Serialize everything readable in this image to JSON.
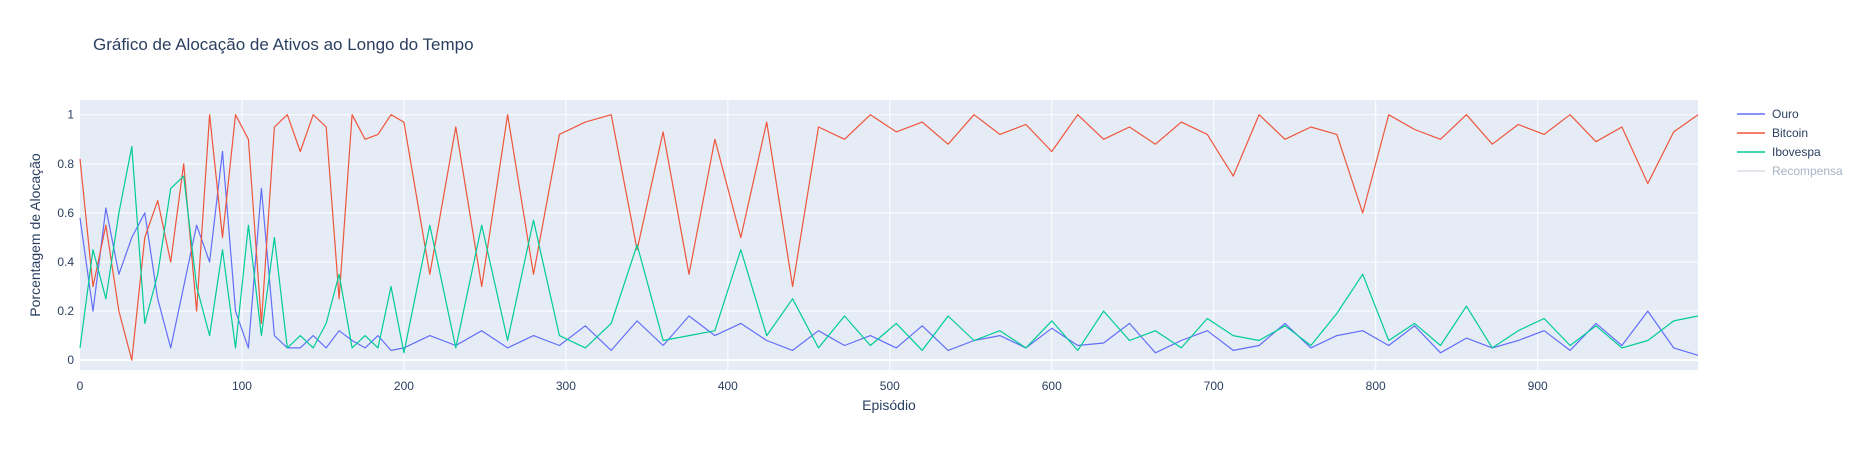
{
  "chart_data": {
    "type": "line",
    "title": "Gráfico de Alocação de Ativos ao Longo do Tempo",
    "xlabel": "Episódio",
    "ylabel": "Porcentagem de Alocação",
    "xlim": [
      0,
      999
    ],
    "ylim": [
      -0.04,
      1.06
    ],
    "x_ticks": [
      0,
      100,
      200,
      300,
      400,
      500,
      600,
      700,
      800,
      900
    ],
    "x_tick_labels": [
      "0",
      "100",
      "200",
      "300",
      "400",
      "500",
      "600",
      "700",
      "800",
      "900"
    ],
    "y_ticks": [
      0,
      0.2,
      0.4,
      0.6,
      0.8,
      1
    ],
    "y_tick_labels": [
      "0",
      "0.2",
      "0.4",
      "0.6",
      "0.8",
      "1"
    ],
    "grid": true,
    "legend_position": "top-right",
    "series": [
      {
        "name": "Ouro",
        "color": "#636efa",
        "visible": true,
        "x": [
          0,
          8,
          16,
          24,
          32,
          40,
          48,
          56,
          64,
          72,
          80,
          88,
          96,
          104,
          112,
          120,
          128,
          136,
          144,
          152,
          160,
          168,
          176,
          184,
          192,
          200,
          216,
          232,
          248,
          264,
          280,
          296,
          312,
          328,
          344,
          360,
          376,
          392,
          408,
          424,
          440,
          456,
          472,
          488,
          504,
          520,
          536,
          552,
          568,
          584,
          600,
          616,
          632,
          648,
          664,
          680,
          696,
          712,
          728,
          744,
          760,
          776,
          792,
          808,
          824,
          840,
          856,
          872,
          888,
          904,
          920,
          936,
          952,
          968,
          984,
          999
        ],
        "values": [
          0.58,
          0.2,
          0.62,
          0.35,
          0.5,
          0.6,
          0.25,
          0.05,
          0.3,
          0.55,
          0.4,
          0.85,
          0.2,
          0.05,
          0.7,
          0.1,
          0.05,
          0.05,
          0.1,
          0.05,
          0.12,
          0.08,
          0.05,
          0.1,
          0.04,
          0.05,
          0.1,
          0.06,
          0.12,
          0.05,
          0.1,
          0.06,
          0.14,
          0.04,
          0.16,
          0.06,
          0.18,
          0.1,
          0.15,
          0.08,
          0.04,
          0.12,
          0.06,
          0.1,
          0.05,
          0.14,
          0.04,
          0.08,
          0.1,
          0.05,
          0.13,
          0.06,
          0.07,
          0.15,
          0.03,
          0.08,
          0.12,
          0.04,
          0.06,
          0.15,
          0.05,
          0.1,
          0.12,
          0.06,
          0.14,
          0.03,
          0.09,
          0.05,
          0.08,
          0.12,
          0.04,
          0.15,
          0.06,
          0.2,
          0.05,
          0.02
        ]
      },
      {
        "name": "Bitcoin",
        "color": "#ef553b",
        "visible": true,
        "x": [
          0,
          8,
          16,
          24,
          32,
          40,
          48,
          56,
          64,
          72,
          80,
          88,
          96,
          104,
          112,
          120,
          128,
          136,
          144,
          152,
          160,
          168,
          176,
          184,
          192,
          200,
          216,
          232,
          248,
          264,
          280,
          296,
          312,
          328,
          344,
          360,
          376,
          392,
          408,
          424,
          440,
          456,
          472,
          488,
          504,
          520,
          536,
          552,
          568,
          584,
          600,
          616,
          632,
          648,
          664,
          680,
          696,
          712,
          728,
          744,
          760,
          776,
          792,
          808,
          824,
          840,
          856,
          872,
          888,
          904,
          920,
          936,
          952,
          968,
          984,
          999
        ],
        "values": [
          0.82,
          0.3,
          0.55,
          0.2,
          0.0,
          0.5,
          0.65,
          0.4,
          0.8,
          0.2,
          1.0,
          0.5,
          1.0,
          0.9,
          0.15,
          0.95,
          1.0,
          0.85,
          1.0,
          0.95,
          0.25,
          1.0,
          0.9,
          0.92,
          1.0,
          0.97,
          0.35,
          0.95,
          0.3,
          1.0,
          0.35,
          0.92,
          0.97,
          1.0,
          0.45,
          0.93,
          0.35,
          0.9,
          0.5,
          0.97,
          0.3,
          0.95,
          0.9,
          1.0,
          0.93,
          0.97,
          0.88,
          1.0,
          0.92,
          0.96,
          0.85,
          1.0,
          0.9,
          0.95,
          0.88,
          0.97,
          0.92,
          0.75,
          1.0,
          0.9,
          0.95,
          0.92,
          0.6,
          1.0,
          0.94,
          0.9,
          1.0,
          0.88,
          0.96,
          0.92,
          1.0,
          0.89,
          0.95,
          0.72,
          0.93,
          1.0
        ]
      },
      {
        "name": "Ibovespa",
        "color": "#00cc96",
        "visible": true,
        "x": [
          0,
          8,
          16,
          24,
          32,
          40,
          48,
          56,
          64,
          72,
          80,
          88,
          96,
          104,
          112,
          120,
          128,
          136,
          144,
          152,
          160,
          168,
          176,
          184,
          192,
          200,
          216,
          232,
          248,
          264,
          280,
          296,
          312,
          328,
          344,
          360,
          376,
          392,
          408,
          424,
          440,
          456,
          472,
          488,
          504,
          520,
          536,
          552,
          568,
          584,
          600,
          616,
          632,
          648,
          664,
          680,
          696,
          712,
          728,
          744,
          760,
          776,
          792,
          808,
          824,
          840,
          856,
          872,
          888,
          904,
          920,
          936,
          952,
          968,
          984,
          999
        ],
        "values": [
          0.05,
          0.45,
          0.25,
          0.6,
          0.87,
          0.15,
          0.35,
          0.7,
          0.75,
          0.3,
          0.1,
          0.45,
          0.05,
          0.55,
          0.1,
          0.5,
          0.05,
          0.1,
          0.05,
          0.15,
          0.35,
          0.05,
          0.1,
          0.05,
          0.3,
          0.03,
          0.55,
          0.05,
          0.55,
          0.08,
          0.57,
          0.1,
          0.05,
          0.15,
          0.47,
          0.08,
          0.1,
          0.12,
          0.45,
          0.1,
          0.25,
          0.05,
          0.18,
          0.06,
          0.15,
          0.04,
          0.18,
          0.08,
          0.12,
          0.05,
          0.16,
          0.04,
          0.2,
          0.08,
          0.12,
          0.05,
          0.17,
          0.1,
          0.08,
          0.14,
          0.06,
          0.19,
          0.35,
          0.08,
          0.15,
          0.06,
          0.22,
          0.05,
          0.12,
          0.17,
          0.06,
          0.14,
          0.05,
          0.08,
          0.16,
          0.18
        ]
      },
      {
        "name": "Recompensa",
        "color": "#ab63fa",
        "visible": false,
        "x": [],
        "values": []
      }
    ]
  }
}
